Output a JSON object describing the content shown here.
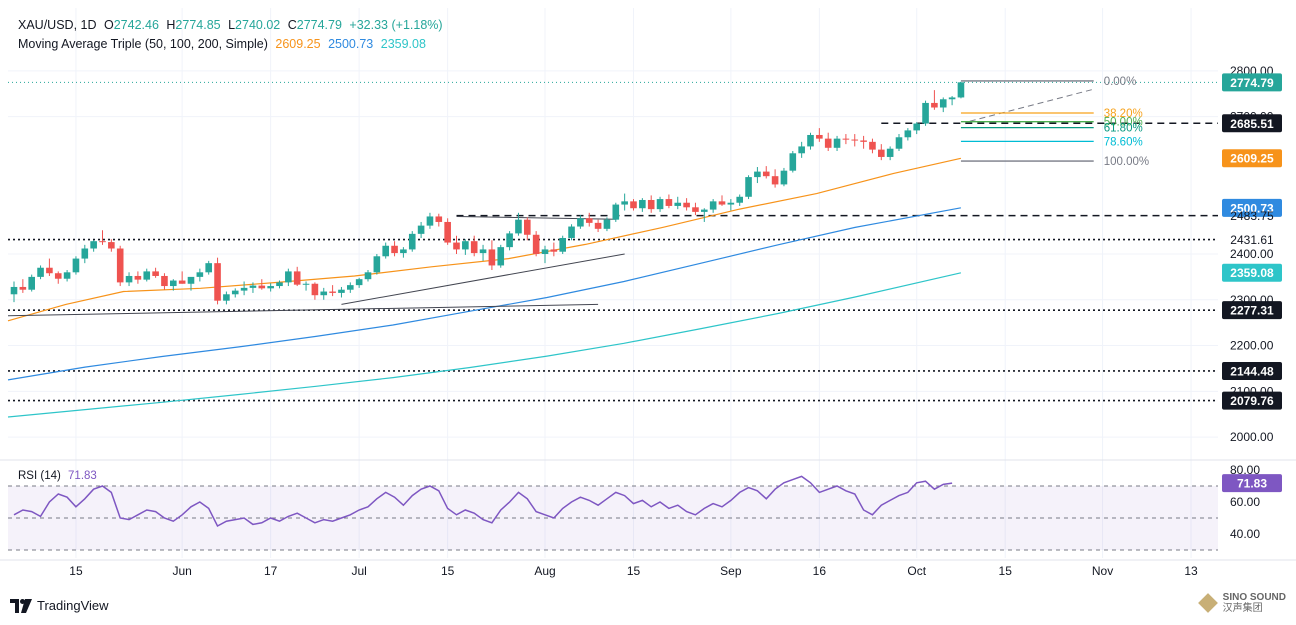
{
  "header": {
    "symbol": "XAU/USD, 1D",
    "o_label": "O",
    "o_value": "2742.46",
    "h_label": "H",
    "h_value": "2774.85",
    "l_label": "L",
    "l_value": "2740.02",
    "c_label": "C",
    "c_value": "2774.79",
    "change": "+32.33 (+1.18%)",
    "ma_title": "Moving Average Triple (50, 100, 200, Simple)",
    "ma50_value": "2609.25",
    "ma100_value": "2500.73",
    "ma200_value": "2359.08"
  },
  "rsi_header": {
    "title": "RSI (14)",
    "value": "71.83"
  },
  "footer": {
    "brand": "TradingView",
    "watermark_line1": "SINO SOUND",
    "watermark_line2": "汉声集团"
  },
  "colors": {
    "up": "#26a69a",
    "down": "#ef5350",
    "ma50": "#f7931a",
    "ma100": "#2f8ae0",
    "ma200": "#2ec5c9",
    "rsi": "#7e57c2",
    "fib": "#787b86",
    "fib382": "#f7a21b",
    "fib500": "#4caf50",
    "fib618": "#089981",
    "fib786": "#00bcd4"
  },
  "chart_data": {
    "type": "candlestick",
    "title": "XAU/USD, 1D",
    "ylim": [
      1950,
      2850
    ],
    "y_ticks": [
      "2800.00",
      "2700.00",
      "2400.00",
      "2300.00",
      "2200.00",
      "2100.00",
      "2000.00"
    ],
    "x_tick_labels": [
      "15",
      "Jun",
      "17",
      "Jul",
      "15",
      "Aug",
      "15",
      "Sep",
      "16",
      "Oct",
      "15",
      "Nov",
      "13"
    ],
    "price_labels": [
      {
        "text": "2774.79",
        "value": 2774.79,
        "kind": "last"
      },
      {
        "text": "2685.51",
        "value": 2685.51,
        "kind": "level"
      },
      {
        "text": "2609.25",
        "value": 2609.25,
        "kind": "ma50"
      },
      {
        "text": "2500.73",
        "value": 2500.73,
        "kind": "ma100"
      },
      {
        "text": "2483.75",
        "value": 2483.75,
        "kind": "plain"
      },
      {
        "text": "2431.61",
        "value": 2431.61,
        "kind": "plain"
      },
      {
        "text": "2359.08",
        "value": 2359.08,
        "kind": "ma200"
      },
      {
        "text": "2277.31",
        "value": 2277.31,
        "kind": "level"
      },
      {
        "text": "2144.48",
        "value": 2144.48,
        "kind": "level"
      },
      {
        "text": "2079.76",
        "value": 2079.76,
        "kind": "level"
      }
    ],
    "horizontal_levels": [
      {
        "value": 2774.79,
        "style": "dotted-teal"
      },
      {
        "value": 2685.51,
        "style": "dashed"
      },
      {
        "value": 2483.75,
        "style": "dashed"
      },
      {
        "value": 2431.61,
        "style": "dotted"
      },
      {
        "value": 2277.31,
        "style": "dotted"
      },
      {
        "value": 2144.48,
        "style": "dotted"
      },
      {
        "value": 2079.76,
        "style": "dotted"
      }
    ],
    "fibonacci": [
      {
        "label": "0.00%",
        "value": 2778
      },
      {
        "label": "38.20%",
        "value": 2708
      },
      {
        "label": "50.00%",
        "value": 2689
      },
      {
        "label": "61.80%",
        "value": 2676
      },
      {
        "label": "78.60%",
        "value": 2646
      },
      {
        "label": "100.00%",
        "value": 2603
      }
    ],
    "moving_averages": {
      "ma50": [
        [
          0,
          2254
        ],
        [
          30,
          2290
        ],
        [
          60,
          2318
        ],
        [
          100,
          2325
        ],
        [
          140,
          2338
        ],
        [
          180,
          2352
        ],
        [
          220,
          2372
        ],
        [
          260,
          2390
        ],
        [
          300,
          2421
        ],
        [
          340,
          2458
        ],
        [
          380,
          2498
        ],
        [
          420,
          2532
        ],
        [
          460,
          2576
        ],
        [
          495,
          2609
        ]
      ],
      "ma100": [
        [
          0,
          2125
        ],
        [
          40,
          2153
        ],
        [
          80,
          2176
        ],
        [
          120,
          2197
        ],
        [
          160,
          2220
        ],
        [
          200,
          2245
        ],
        [
          240,
          2275
        ],
        [
          280,
          2305
        ],
        [
          320,
          2340
        ],
        [
          360,
          2380
        ],
        [
          400,
          2420
        ],
        [
          440,
          2458
        ],
        [
          495,
          2501
        ]
      ],
      "ma200": [
        [
          0,
          2044
        ],
        [
          40,
          2060
        ],
        [
          80,
          2076
        ],
        [
          120,
          2093
        ],
        [
          160,
          2111
        ],
        [
          200,
          2130
        ],
        [
          240,
          2152
        ],
        [
          280,
          2177
        ],
        [
          320,
          2205
        ],
        [
          360,
          2237
        ],
        [
          400,
          2270
        ],
        [
          440,
          2306
        ],
        [
          495,
          2359
        ]
      ]
    },
    "trendlines": [
      {
        "from": [
          0,
          2265
        ],
        "to": [
          275,
          2290
        ]
      },
      {
        "from": [
          150,
          2290
        ],
        "to": [
          280,
          2400
        ]
      },
      {
        "from": [
          200,
          2285
        ],
        "to": [
          275,
          2320
        ]
      },
      {
        "from": [
          205,
          2481
        ],
        "to": [
          275,
          2465
        ]
      }
    ],
    "candles": [
      [
        2312,
        2340,
        2295,
        2328
      ],
      [
        2328,
        2345,
        2315,
        2322
      ],
      [
        2322,
        2355,
        2318,
        2350
      ],
      [
        2350,
        2375,
        2345,
        2370
      ],
      [
        2370,
        2390,
        2352,
        2358
      ],
      [
        2358,
        2362,
        2335,
        2346
      ],
      [
        2346,
        2365,
        2340,
        2360
      ],
      [
        2360,
        2395,
        2355,
        2390
      ],
      [
        2390,
        2420,
        2380,
        2412
      ],
      [
        2412,
        2430,
        2405,
        2428
      ],
      [
        2428,
        2452,
        2420,
        2426
      ],
      [
        2426,
        2432,
        2405,
        2412
      ],
      [
        2412,
        2418,
        2330,
        2338
      ],
      [
        2338,
        2360,
        2330,
        2352
      ],
      [
        2352,
        2362,
        2335,
        2344
      ],
      [
        2344,
        2368,
        2340,
        2362
      ],
      [
        2362,
        2370,
        2348,
        2352
      ],
      [
        2352,
        2358,
        2322,
        2330
      ],
      [
        2330,
        2345,
        2320,
        2342
      ],
      [
        2342,
        2362,
        2335,
        2335
      ],
      [
        2335,
        2348,
        2320,
        2350
      ],
      [
        2350,
        2368,
        2340,
        2360
      ],
      [
        2360,
        2385,
        2355,
        2380
      ],
      [
        2380,
        2392,
        2290,
        2298
      ],
      [
        2298,
        2318,
        2290,
        2312
      ],
      [
        2312,
        2325,
        2305,
        2320
      ],
      [
        2320,
        2340,
        2310,
        2326
      ],
      [
        2326,
        2338,
        2315,
        2331
      ],
      [
        2331,
        2345,
        2322,
        2325
      ],
      [
        2325,
        2336,
        2318,
        2330
      ],
      [
        2330,
        2342,
        2325,
        2338
      ],
      [
        2338,
        2368,
        2330,
        2362
      ],
      [
        2362,
        2372,
        2330,
        2333
      ],
      [
        2333,
        2340,
        2320,
        2335
      ],
      [
        2335,
        2338,
        2300,
        2310
      ],
      [
        2310,
        2326,
        2300,
        2318
      ],
      [
        2318,
        2332,
        2308,
        2315
      ],
      [
        2315,
        2328,
        2305,
        2322
      ],
      [
        2322,
        2338,
        2315,
        2332
      ],
      [
        2332,
        2348,
        2326,
        2345
      ],
      [
        2345,
        2365,
        2340,
        2360
      ],
      [
        2360,
        2400,
        2355,
        2395
      ],
      [
        2395,
        2425,
        2390,
        2418
      ],
      [
        2418,
        2428,
        2395,
        2402
      ],
      [
        2402,
        2415,
        2392,
        2410
      ],
      [
        2410,
        2450,
        2405,
        2444
      ],
      [
        2444,
        2470,
        2435,
        2462
      ],
      [
        2462,
        2490,
        2455,
        2482
      ],
      [
        2482,
        2488,
        2460,
        2470
      ],
      [
        2470,
        2478,
        2420,
        2425
      ],
      [
        2425,
        2440,
        2400,
        2410
      ],
      [
        2410,
        2432,
        2398,
        2428
      ],
      [
        2428,
        2440,
        2395,
        2402
      ],
      [
        2402,
        2420,
        2385,
        2410
      ],
      [
        2410,
        2430,
        2365,
        2375
      ],
      [
        2375,
        2420,
        2370,
        2415
      ],
      [
        2415,
        2450,
        2408,
        2445
      ],
      [
        2445,
        2490,
        2440,
        2475
      ],
      [
        2475,
        2480,
        2430,
        2442
      ],
      [
        2442,
        2450,
        2395,
        2400
      ],
      [
        2400,
        2418,
        2380,
        2410
      ],
      [
        2410,
        2425,
        2395,
        2405
      ],
      [
        2405,
        2440,
        2400,
        2435
      ],
      [
        2435,
        2465,
        2430,
        2460
      ],
      [
        2460,
        2485,
        2455,
        2478
      ],
      [
        2478,
        2490,
        2460,
        2468
      ],
      [
        2468,
        2475,
        2448,
        2455
      ],
      [
        2455,
        2480,
        2450,
        2475
      ],
      [
        2475,
        2512,
        2470,
        2508
      ],
      [
        2508,
        2532,
        2495,
        2515
      ],
      [
        2515,
        2520,
        2495,
        2500
      ],
      [
        2500,
        2522,
        2492,
        2518
      ],
      [
        2518,
        2528,
        2490,
        2498
      ],
      [
        2498,
        2525,
        2492,
        2520
      ],
      [
        2520,
        2530,
        2500,
        2505
      ],
      [
        2505,
        2525,
        2498,
        2512
      ],
      [
        2512,
        2522,
        2495,
        2502
      ],
      [
        2502,
        2512,
        2485,
        2492
      ],
      [
        2492,
        2500,
        2470,
        2497
      ],
      [
        2497,
        2520,
        2490,
        2515
      ],
      [
        2515,
        2528,
        2505,
        2508
      ],
      [
        2508,
        2520,
        2495,
        2512
      ],
      [
        2512,
        2530,
        2505,
        2525
      ],
      [
        2525,
        2572,
        2520,
        2568
      ],
      [
        2568,
        2590,
        2555,
        2580
      ],
      [
        2580,
        2592,
        2565,
        2570
      ],
      [
        2570,
        2585,
        2545,
        2552
      ],
      [
        2552,
        2588,
        2548,
        2582
      ],
      [
        2582,
        2625,
        2578,
        2620
      ],
      [
        2620,
        2645,
        2610,
        2635
      ],
      [
        2635,
        2665,
        2628,
        2660
      ],
      [
        2660,
        2675,
        2645,
        2652
      ],
      [
        2652,
        2665,
        2625,
        2632
      ],
      [
        2632,
        2658,
        2625,
        2652
      ],
      [
        2652,
        2662,
        2640,
        2650
      ],
      [
        2650,
        2662,
        2635,
        2648
      ],
      [
        2648,
        2658,
        2630,
        2645
      ],
      [
        2645,
        2652,
        2620,
        2628
      ],
      [
        2628,
        2640,
        2605,
        2612
      ],
      [
        2612,
        2635,
        2605,
        2630
      ],
      [
        2630,
        2662,
        2625,
        2655
      ],
      [
        2655,
        2675,
        2648,
        2670
      ],
      [
        2670,
        2688,
        2662,
        2685
      ],
      [
        2685,
        2735,
        2680,
        2730
      ],
      [
        2730,
        2758,
        2715,
        2720
      ],
      [
        2720,
        2742,
        2710,
        2738
      ],
      [
        2738,
        2745,
        2725,
        2742
      ],
      [
        2742,
        2775,
        2740,
        2775
      ]
    ]
  },
  "rsi_data": {
    "ylim": [
      25,
      85
    ],
    "ticks": [
      "80.00",
      "60.00",
      "40.00"
    ],
    "levels": [
      70,
      50,
      30
    ],
    "values": [
      52,
      55,
      54,
      51,
      60,
      65,
      63,
      57,
      62,
      68,
      70,
      66,
      50,
      49,
      52,
      55,
      54,
      50,
      48,
      52,
      57,
      60,
      56,
      45,
      48,
      49,
      50,
      46,
      47,
      50,
      48,
      51,
      53,
      50,
      47,
      49,
      48,
      50,
      52,
      55,
      57,
      62,
      66,
      63,
      58,
      64,
      68,
      70,
      67,
      56,
      52,
      55,
      53,
      49,
      47,
      55,
      60,
      66,
      62,
      54,
      52,
      50,
      56,
      60,
      63,
      61,
      58,
      62,
      66,
      64,
      59,
      61,
      57,
      60,
      56,
      58,
      54,
      52,
      56,
      59,
      57,
      61,
      66,
      69,
      67,
      62,
      68,
      72,
      74,
      76,
      72,
      66,
      68,
      70,
      67,
      65,
      55,
      52,
      58,
      61,
      64,
      66,
      72,
      73,
      68,
      71,
      71.83
    ]
  }
}
